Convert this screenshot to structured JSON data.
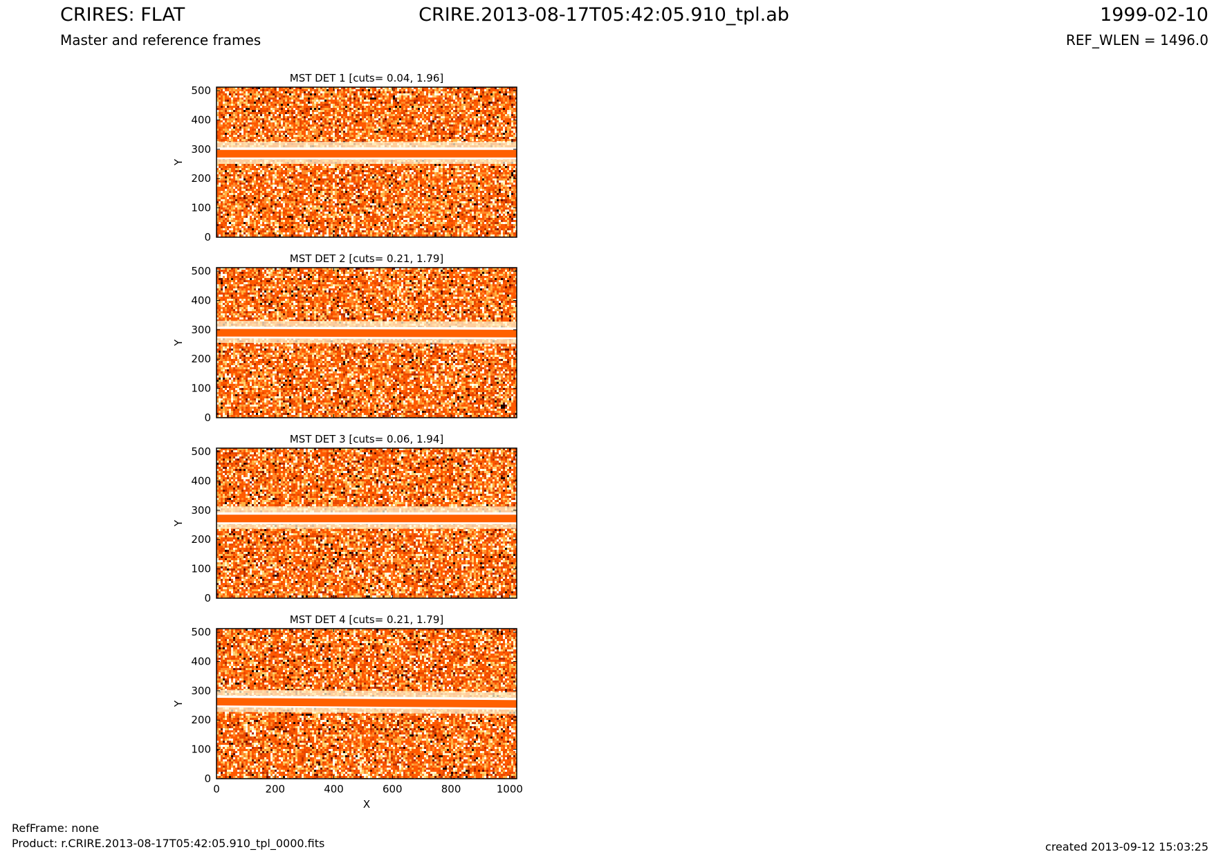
{
  "header": {
    "title": "CRIRES: FLAT",
    "subtitle": "Master and reference frames",
    "file": "CRIRE.2013-08-17T05:42:05.910_tpl.ab",
    "date": "1999-02-10",
    "ref_wlen": "REF_WLEN = 1496.0"
  },
  "footer": {
    "refframe": "RefFrame: none",
    "product": "Product: r.CRIRE.2013-08-17T05:42:05.910_tpl_0000.fits",
    "created": "created 2013-09-12 15:03:25"
  },
  "colors": {
    "band": "#ff6000",
    "noise": [
      "#ff5a00",
      "#e84800",
      "#ff8a2a",
      "#ffb040",
      "#ffd070",
      "#fff5c8",
      "#ffffff",
      "#b82e00",
      "#6a1000",
      "#1a0500"
    ]
  },
  "chart_data": [
    {
      "type": "heatmap",
      "title": "MST DET 1 [cuts= 0.04, 1.96]",
      "xlabel": "",
      "ylabel": "Y",
      "xlim": [
        0,
        1024
      ],
      "ylim": [
        0,
        512
      ],
      "yticks": [
        0,
        100,
        200,
        300,
        400,
        500
      ],
      "band": {
        "y_left": 285,
        "y_right": 285,
        "half_width": 13
      }
    },
    {
      "type": "heatmap",
      "title": "MST DET 2 [cuts= 0.21, 1.79]",
      "xlabel": "",
      "ylabel": "Y",
      "xlim": [
        0,
        1024
      ],
      "ylim": [
        0,
        512
      ],
      "yticks": [
        0,
        100,
        200,
        300,
        400,
        500
      ],
      "band": {
        "y_left": 290,
        "y_right": 287,
        "half_width": 13
      }
    },
    {
      "type": "heatmap",
      "title": "MST DET 3 [cuts= 0.06, 1.94]",
      "xlabel": "",
      "ylabel": "Y",
      "xlim": [
        0,
        1024
      ],
      "ylim": [
        0,
        512
      ],
      "yticks": [
        0,
        100,
        200,
        300,
        400,
        500
      ],
      "band": {
        "y_left": 272,
        "y_right": 272,
        "half_width": 13
      }
    },
    {
      "type": "heatmap",
      "title": "MST DET 4 [cuts= 0.21, 1.79]",
      "xlabel": "X",
      "ylabel": "Y",
      "xlim": [
        0,
        1024
      ],
      "ylim": [
        0,
        512
      ],
      "yticks": [
        0,
        100,
        200,
        300,
        400,
        500
      ],
      "xticks": [
        0,
        200,
        400,
        600,
        800,
        1000
      ],
      "band": {
        "y_left": 263,
        "y_right": 255,
        "half_width": 13
      }
    }
  ]
}
